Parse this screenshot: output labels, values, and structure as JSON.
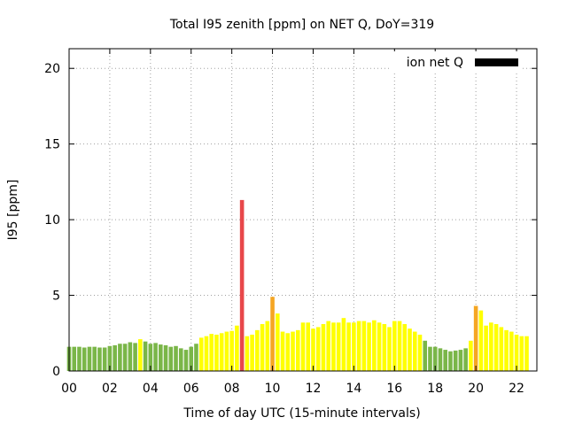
{
  "chart_data": {
    "type": "bar",
    "title": "Total I95 zenith [ppm] on NET Q, DoY=319",
    "xlabel": "Time of day UTC (15-minute intervals)",
    "ylabel": "I95 [ppm]",
    "xlim": [
      0,
      23
    ],
    "ylim": [
      0,
      21.3
    ],
    "x_ticks": [
      "00",
      "02",
      "04",
      "06",
      "08",
      "10",
      "12",
      "14",
      "16",
      "18",
      "20",
      "22"
    ],
    "y_ticks": [
      "0",
      "5",
      "10",
      "15",
      "20"
    ],
    "grid": true,
    "legend": {
      "position": "top-right",
      "entries": [
        {
          "label": "ion net Q",
          "color": "#000000"
        }
      ]
    },
    "color_classes": {
      "green": "#7ab648",
      "yellow": "#ffff00",
      "orange": "#f5a623",
      "red": "#e8474a"
    },
    "interval_hours": 0.25,
    "values": [
      1.6,
      1.6,
      1.6,
      1.55,
      1.6,
      1.6,
      1.55,
      1.55,
      1.65,
      1.7,
      1.8,
      1.8,
      1.9,
      1.85,
      2.1,
      1.95,
      1.8,
      1.85,
      1.75,
      1.7,
      1.6,
      1.65,
      1.5,
      1.4,
      1.6,
      1.8,
      2.2,
      2.3,
      2.45,
      2.4,
      2.5,
      2.6,
      2.65,
      3.0,
      11.3,
      2.3,
      2.4,
      2.7,
      3.1,
      3.3,
      4.9,
      3.8,
      2.6,
      2.5,
      2.6,
      2.7,
      3.2,
      3.2,
      2.8,
      2.9,
      3.1,
      3.3,
      3.2,
      3.2,
      3.5,
      3.2,
      3.2,
      3.3,
      3.3,
      3.2,
      3.35,
      3.2,
      3.1,
      2.9,
      3.3,
      3.3,
      3.1,
      2.8,
      2.6,
      2.4,
      2.0,
      1.6,
      1.6,
      1.5,
      1.4,
      1.3,
      1.35,
      1.4,
      1.5,
      2.0,
      4.3,
      4.0,
      3.0,
      3.2,
      3.1,
      2.9,
      2.7,
      2.6,
      2.4,
      2.3,
      2.3
    ],
    "colors": [
      "green",
      "green",
      "green",
      "green",
      "green",
      "green",
      "green",
      "green",
      "green",
      "green",
      "green",
      "green",
      "green",
      "green",
      "yellow",
      "green",
      "green",
      "green",
      "green",
      "green",
      "green",
      "green",
      "green",
      "green",
      "green",
      "green",
      "yellow",
      "yellow",
      "yellow",
      "yellow",
      "yellow",
      "yellow",
      "yellow",
      "yellow",
      "red",
      "yellow",
      "yellow",
      "yellow",
      "yellow",
      "yellow",
      "orange",
      "yellow",
      "yellow",
      "yellow",
      "yellow",
      "yellow",
      "yellow",
      "yellow",
      "yellow",
      "yellow",
      "yellow",
      "yellow",
      "yellow",
      "yellow",
      "yellow",
      "yellow",
      "yellow",
      "yellow",
      "yellow",
      "yellow",
      "yellow",
      "yellow",
      "yellow",
      "yellow",
      "yellow",
      "yellow",
      "yellow",
      "yellow",
      "yellow",
      "yellow",
      "green",
      "green",
      "green",
      "green",
      "green",
      "green",
      "green",
      "green",
      "green",
      "yellow",
      "orange",
      "yellow",
      "yellow",
      "yellow",
      "yellow",
      "yellow",
      "yellow",
      "yellow",
      "yellow",
      "yellow",
      "yellow"
    ]
  }
}
